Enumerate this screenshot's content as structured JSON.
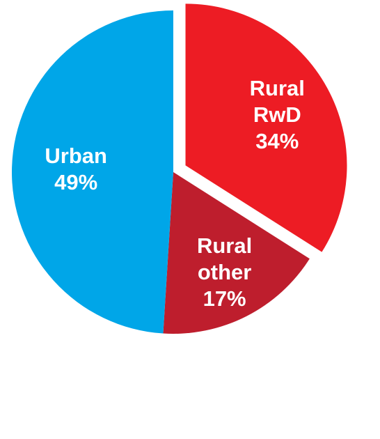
{
  "chart_data": {
    "type": "pie",
    "categories": [
      "Rural RwD",
      "Rural other",
      "Urban"
    ],
    "values": [
      34,
      17,
      49
    ],
    "value_labels": [
      "34%",
      "17%",
      "49%"
    ],
    "colors": [
      "#ed1c24",
      "#be1e2d",
      "#00a6e8"
    ],
    "exploded": [
      true,
      false,
      false
    ]
  }
}
